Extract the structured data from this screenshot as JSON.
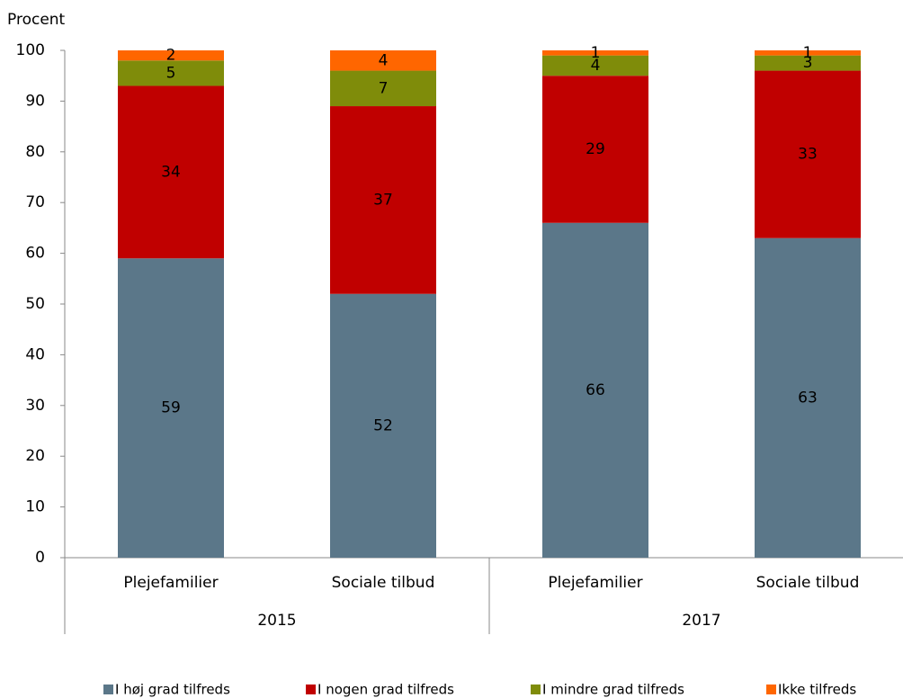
{
  "chart_data": {
    "type": "stacked_bar",
    "y_label": "Procent",
    "categories": [
      "Plejefamilier",
      "Sociale tilbud",
      "Plejefamilier",
      "Sociale tilbud"
    ],
    "groups": [
      "2015",
      "2017"
    ],
    "series": [
      {
        "name": "I høj grad tilfreds",
        "color": "#5b7789",
        "values": [
          59,
          52,
          66,
          63
        ]
      },
      {
        "name": "I nogen grad tilfreds",
        "color": "#c00000",
        "values": [
          34,
          37,
          29,
          33
        ]
      },
      {
        "name": "I mindre grad tilfreds",
        "color": "#7f8c0a",
        "values": [
          5,
          7,
          4,
          3
        ]
      },
      {
        "name": "Ikke tilfreds",
        "color": "#ff6600",
        "values": [
          2,
          4,
          1,
          1
        ]
      }
    ],
    "ylim": [
      0,
      100
    ],
    "yticks": [
      0,
      10,
      20,
      30,
      40,
      50,
      60,
      70,
      80,
      90,
      100
    ],
    "legend": "bottom"
  }
}
